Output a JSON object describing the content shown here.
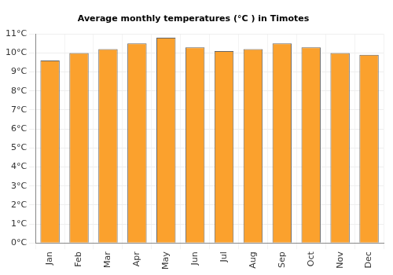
{
  "chart_data": {
    "type": "bar",
    "title": "Average monthly temperatures (°C ) in Timotes",
    "categories": [
      "Jan",
      "Feb",
      "Mar",
      "Apr",
      "May",
      "Jun",
      "Jul",
      "Aug",
      "Sep",
      "Oct",
      "Nov",
      "Dec"
    ],
    "values": [
      9.6,
      10.0,
      10.2,
      10.5,
      10.8,
      10.3,
      10.1,
      10.2,
      10.5,
      10.3,
      10.0,
      9.9
    ],
    "color": "#fba12d",
    "ylim": [
      0,
      11
    ],
    "yticks": [
      {
        "value": 0,
        "label": "0°C"
      },
      {
        "value": 1,
        "label": "1°C"
      },
      {
        "value": 2,
        "label": "2°C"
      },
      {
        "value": 3,
        "label": "3°C"
      },
      {
        "value": 4,
        "label": "4°C"
      },
      {
        "value": 5,
        "label": "5°C"
      },
      {
        "value": 6,
        "label": "6°C"
      },
      {
        "value": 7,
        "label": "7°C"
      },
      {
        "value": 8,
        "label": "8°C"
      },
      {
        "value": 9,
        "label": "9°C"
      },
      {
        "value": 10,
        "label": "10°C"
      },
      {
        "value": 11,
        "label": "11°C"
      }
    ],
    "grid": true
  }
}
